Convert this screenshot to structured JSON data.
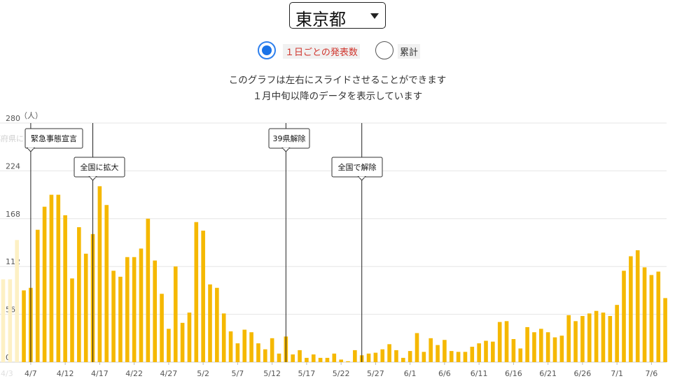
{
  "header": {
    "prefecture": "東京都",
    "radio_daily_label": "１日ごとの発表数",
    "radio_cumulative_label": "累計",
    "note_line1": "このグラフは左右にスライドさせることができます",
    "note_line2": "１月中旬以降のデータを表示しています"
  },
  "chart_data": {
    "type": "bar",
    "ylabel": "（人）",
    "ylim": [
      0,
      280
    ],
    "yticks": [
      0,
      56,
      112,
      168,
      224,
      280
    ],
    "grid": true,
    "color": "#f5b800",
    "faded_color": "#fdf0c4",
    "x_start_date": "4/3",
    "x": [
      "4/3",
      "4/4",
      "4/5",
      "4/6",
      "4/7",
      "4/8",
      "4/9",
      "4/10",
      "4/11",
      "4/12",
      "4/13",
      "4/14",
      "4/15",
      "4/16",
      "4/17",
      "4/18",
      "4/19",
      "4/20",
      "4/21",
      "4/22",
      "4/23",
      "4/24",
      "4/25",
      "4/26",
      "4/27",
      "4/28",
      "4/29",
      "4/30",
      "5/1",
      "5/2",
      "5/3",
      "5/4",
      "5/5",
      "5/6",
      "5/7",
      "5/8",
      "5/9",
      "5/10",
      "5/11",
      "5/12",
      "5/13",
      "5/14",
      "5/15",
      "5/16",
      "5/17",
      "5/18",
      "5/19",
      "5/20",
      "5/21",
      "5/22",
      "5/23",
      "5/24",
      "5/25",
      "5/26",
      "5/27",
      "5/28",
      "5/29",
      "5/30",
      "5/31",
      "6/1",
      "6/2",
      "6/3",
      "6/4",
      "6/5",
      "6/6",
      "6/7",
      "6/8",
      "6/9",
      "6/10",
      "6/11",
      "6/12",
      "6/13",
      "6/14",
      "6/15",
      "6/16",
      "6/17",
      "6/18",
      "6/19",
      "6/20",
      "6/21",
      "6/22",
      "6/23",
      "6/24",
      "6/25",
      "6/26",
      "6/27",
      "6/28",
      "6/29",
      "6/30",
      "7/1",
      "7/2",
      "7/3",
      "7/4",
      "7/5",
      "7/6",
      "7/7",
      "7/8"
    ],
    "values": [
      97,
      97,
      143,
      84,
      87,
      155,
      182,
      196,
      196,
      172,
      98,
      158,
      127,
      150,
      206,
      184,
      107,
      100,
      123,
      123,
      133,
      168,
      119,
      80,
      39,
      112,
      46,
      58,
      164,
      154,
      91,
      87,
      57,
      36,
      22,
      38,
      35,
      22,
      15,
      28,
      10,
      30,
      9,
      14,
      5,
      9,
      5,
      5,
      10,
      3,
      1,
      14,
      8,
      10,
      11,
      15,
      21,
      14,
      5,
      13,
      34,
      12,
      28,
      20,
      26,
      13,
      12,
      12,
      18,
      22,
      25,
      24,
      47,
      48,
      27,
      16,
      41,
      35,
      39,
      35,
      29,
      31,
      55,
      48,
      54,
      57,
      60,
      58,
      54,
      67,
      107,
      124,
      131,
      111,
      102,
      106,
      75
    ],
    "faded_count": 3,
    "xtick_labels": [
      "4/7",
      "4/12",
      "4/17",
      "4/22",
      "4/27",
      "5/2",
      "5/7",
      "5/12",
      "5/17",
      "5/22",
      "5/27",
      "6/1",
      "6/6",
      "6/11",
      "6/16",
      "6/21",
      "6/26",
      "7/1",
      "7/6"
    ],
    "annotations": [
      {
        "x": "4/7",
        "text": "緊急事態宣言",
        "prefix": "都府県に"
      },
      {
        "x": "4/16",
        "text": "全国に拡大"
      },
      {
        "x": "5/14",
        "text": "39県解除"
      },
      {
        "x": "5/25",
        "text": "全国で解除"
      }
    ]
  }
}
